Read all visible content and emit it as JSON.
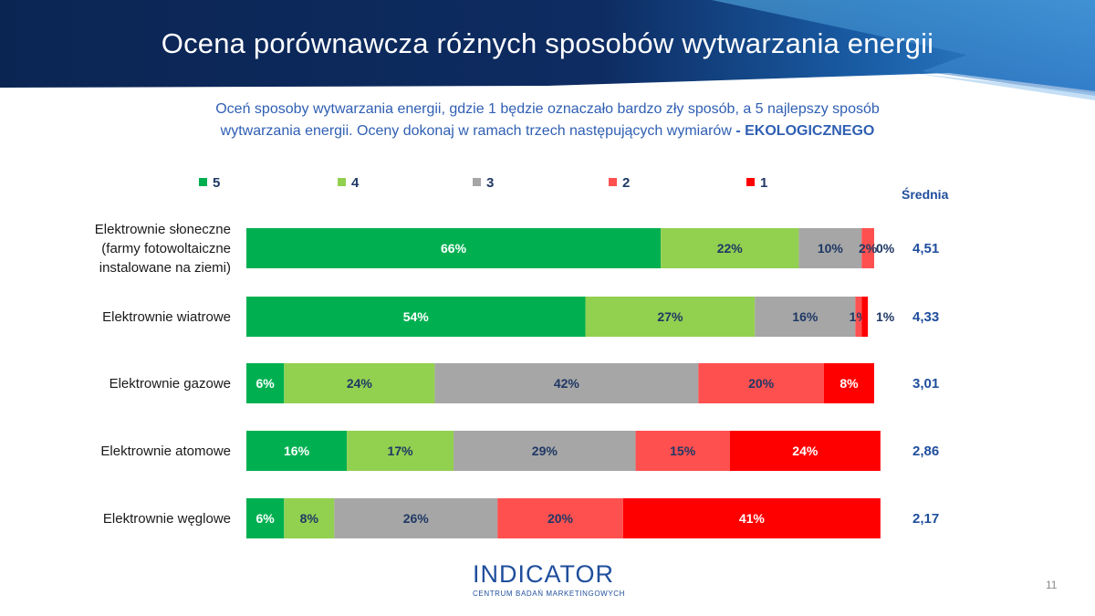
{
  "slide": {
    "title": "Ocena porównawcza różnych sposobów wytwarzania energii",
    "question": "Oceń sposoby wytwarzania energii, gdzie 1 będzie oznaczało bardzo zły sposób, a 5 najlepszy sposób wytwarzania energii. Oceny dokonaj w ramach trzech następujących wymiarów",
    "question_emphasis": "- EKOLOGICZNEGO",
    "average_header": "Średnia",
    "page_number": "11",
    "logo": {
      "word": "INDICATOR",
      "subtitle": "CENTRUM BADAŃ MARKETINGOWYCH"
    },
    "colors": {
      "header_dark": "#0e2a5c",
      "header_accent": "#4aa3df",
      "question_text": "#2f5fb3",
      "average_text": "#1f4e9c"
    }
  },
  "chart_data": {
    "type": "bar",
    "orientation": "horizontal",
    "stacked": true,
    "value_format": "percent",
    "legend_position": "top",
    "categories": [
      "Elektrownie słoneczne (farmy fotowoltaiczne instalowane na ziemi)",
      "Elektrownie wiatrowe",
      "Elektrownie gazowe",
      "Elektrownie atomowe",
      "Elektrownie węglowe"
    ],
    "category_lines": [
      [
        "Elektrownie słoneczne",
        "(farmy fotowoltaiczne",
        "instalowane na ziemi)"
      ],
      [
        "Elektrownie wiatrowe"
      ],
      [
        "Elektrownie gazowe"
      ],
      [
        "Elektrownie atomowe"
      ],
      [
        "Elektrownie węglowe"
      ]
    ],
    "series": [
      {
        "name": "5",
        "color": "#00b050",
        "label_color": "#ffffff",
        "values": [
          66,
          54,
          6,
          16,
          6
        ]
      },
      {
        "name": "4",
        "color": "#92d050",
        "label_color": "#1f3864",
        "values": [
          22,
          27,
          24,
          17,
          8
        ]
      },
      {
        "name": "3",
        "color": "#a6a6a6",
        "label_color": "#1f3864",
        "values": [
          10,
          16,
          42,
          29,
          26
        ]
      },
      {
        "name": "2",
        "color": "#ff5050",
        "label_color": "#1f3864",
        "values": [
          2,
          1,
          20,
          15,
          20
        ]
      },
      {
        "name": "1",
        "color": "#ff0000",
        "label_color": "#ffffff",
        "values": [
          0,
          1,
          8,
          24,
          41
        ]
      }
    ],
    "averages": [
      "4,51",
      "4,33",
      "3,01",
      "2,86",
      "2,17"
    ]
  }
}
